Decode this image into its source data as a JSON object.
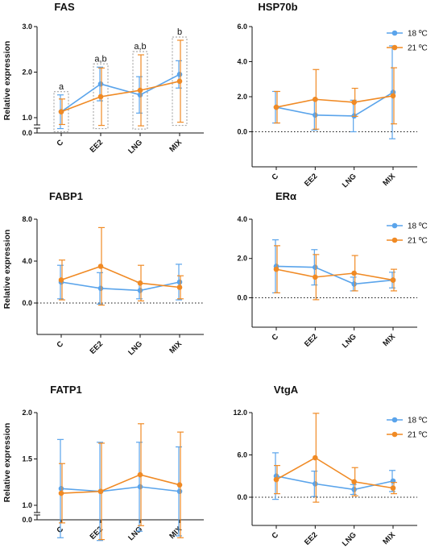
{
  "colors": {
    "s18": "#5aa4eb",
    "s21": "#f08a24",
    "axis": "#111111"
  },
  "chart_data": [
    {
      "type": "line",
      "title": "FAS",
      "ylabel": "Relative expression",
      "categories": [
        "C",
        "EE2",
        "LNG",
        "MIX"
      ],
      "ylim": [
        0,
        3
      ],
      "axis_break": true,
      "zero_line": false,
      "yticks": [
        "0.0",
        "1.0",
        "2.0",
        "3.0"
      ],
      "series": [
        {
          "values": [
            1.13,
            1.74,
            1.5,
            1.95
          ],
          "err": [
            0.37,
            0.37,
            0.4,
            0.3
          ]
        },
        {
          "values": [
            1.13,
            1.46,
            1.6,
            1.8
          ],
          "err": [
            0.28,
            0.63,
            0.78,
            0.9
          ]
        }
      ],
      "annotations": [
        "a",
        "a,b",
        "a,b",
        "b"
      ],
      "legend": null
    },
    {
      "type": "line",
      "title": "HSP70b",
      "ylabel": "",
      "categories": [
        "C",
        "EE2",
        "LNG",
        "MIX"
      ],
      "ylim": [
        -2,
        6
      ],
      "axis_break": false,
      "zero_line": true,
      "yticks": [
        "0.0",
        "2.0",
        "4.0",
        "6.0"
      ],
      "series": [
        {
          "name": "18 ºC",
          "values": [
            1.4,
            0.95,
            0.9,
            2.25
          ],
          "err": [
            0.9,
            0.85,
            0.9,
            2.65
          ]
        },
        {
          "name": "21 ºC",
          "values": [
            1.4,
            1.85,
            1.68,
            2.05
          ],
          "err": [
            0.9,
            1.7,
            0.8,
            1.6
          ]
        }
      ],
      "annotations": [],
      "legend": "right"
    },
    {
      "type": "line",
      "title": "FABP1",
      "ylabel": "Relative expression",
      "categories": [
        "C",
        "EE2",
        "LNG",
        "MIX"
      ],
      "ylim": [
        -3,
        8
      ],
      "axis_break": false,
      "zero_line": true,
      "yticks": [
        "0.0",
        "4.0",
        "8.0"
      ],
      "series": [
        {
          "values": [
            2.0,
            1.4,
            1.2,
            2.0
          ],
          "err": [
            1.6,
            1.5,
            0.8,
            1.7
          ]
        },
        {
          "values": [
            2.2,
            3.5,
            1.9,
            1.5
          ],
          "err": [
            1.9,
            3.7,
            1.7,
            1.1
          ]
        }
      ],
      "annotations": [],
      "legend": null
    },
    {
      "type": "line",
      "title": "ERα",
      "ylabel": "",
      "categories": [
        "C",
        "EE2",
        "LNG",
        "MIX"
      ],
      "ylim": [
        -1.5,
        4
      ],
      "axis_break": false,
      "zero_line": true,
      "yticks": [
        "0.0",
        "2.0",
        "4.0"
      ],
      "series": [
        {
          "name": "18 ºC",
          "values": [
            1.6,
            1.55,
            0.7,
            0.9
          ],
          "err": [
            1.35,
            0.9,
            0.35,
            0.4
          ]
        },
        {
          "name": "21 ºC",
          "values": [
            1.45,
            1.05,
            1.25,
            0.9
          ],
          "err": [
            1.2,
            1.15,
            0.9,
            0.55
          ]
        }
      ],
      "annotations": [],
      "legend": "right"
    },
    {
      "type": "line",
      "title": "FATP1",
      "ylabel": "Relative expression",
      "categories": [
        "C",
        "EE2",
        "LNG",
        "MIX"
      ],
      "ylim": [
        0,
        2
      ],
      "axis_break": true,
      "zero_line": false,
      "yticks": [
        "0.0",
        "1.0",
        "1.5",
        "2.0"
      ],
      "series": [
        {
          "values": [
            1.18,
            1.15,
            1.2,
            1.15
          ],
          "err": [
            0.53,
            0.53,
            0.48,
            0.48
          ]
        },
        {
          "values": [
            1.13,
            1.15,
            1.33,
            1.22
          ],
          "err": [
            0.32,
            0.52,
            0.55,
            0.57
          ]
        }
      ],
      "annotations": [],
      "legend": null
    },
    {
      "type": "line",
      "title": "VtgA",
      "ylabel": "",
      "categories": [
        "C",
        "EE2",
        "LNG",
        "MIX"
      ],
      "ylim": [
        -4,
        12
      ],
      "axis_break": false,
      "zero_line": true,
      "yticks": [
        "0.0",
        "6.0",
        "12.0"
      ],
      "series": [
        {
          "name": "18 ºC",
          "values": [
            3.0,
            1.9,
            1.1,
            2.3
          ],
          "err": [
            3.3,
            1.8,
            0.7,
            1.5
          ]
        },
        {
          "name": "21 ºC",
          "values": [
            2.5,
            5.6,
            2.2,
            1.3
          ],
          "err": [
            2.0,
            6.3,
            2.0,
            0.8
          ]
        }
      ],
      "annotations": [],
      "legend": "right"
    }
  ]
}
